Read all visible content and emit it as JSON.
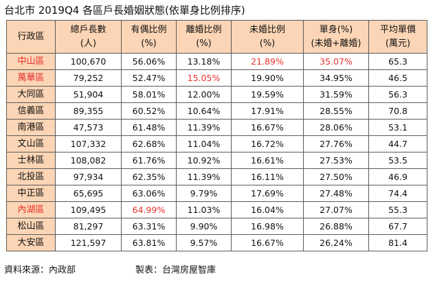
{
  "title": "台北市 2019Q4 各區戶長婚姻狀態(依單身比例排序)",
  "table": {
    "headers": [
      [
        "行政區"
      ],
      [
        "總戶長數",
        "(人)"
      ],
      [
        "有偶比例",
        "(%)"
      ],
      [
        "離婚比例",
        "(%)"
      ],
      [
        "未婚比例",
        "(%)"
      ],
      [
        "單身(%)",
        "(未婚+離婚)"
      ],
      [
        "平均單價",
        "(萬元)"
      ]
    ],
    "rows": [
      {
        "district": "中山區",
        "households": "100,670",
        "married": "56.06%",
        "divorced": "13.18%",
        "unmarried": "21.89%",
        "single": "35.07%",
        "price": "65.3"
      },
      {
        "district": "萬華區",
        "households": "79,252",
        "married": "52.47%",
        "divorced": "15.05%",
        "unmarried": "19.90%",
        "single": "34.95%",
        "price": "46.5"
      },
      {
        "district": "大同區",
        "households": "51,904",
        "married": "58.01%",
        "divorced": "12.00%",
        "unmarried": "19.59%",
        "single": "31.59%",
        "price": "56.3"
      },
      {
        "district": "信義區",
        "households": "89,355",
        "married": "60.52%",
        "divorced": "10.64%",
        "unmarried": "17.91%",
        "single": "28.55%",
        "price": "70.8"
      },
      {
        "district": "南港區",
        "households": "47,573",
        "married": "61.48%",
        "divorced": "11.39%",
        "unmarried": "16.67%",
        "single": "28.06%",
        "price": "53.1"
      },
      {
        "district": "文山區",
        "households": "107,332",
        "married": "62.68%",
        "divorced": "11.04%",
        "unmarried": "16.72%",
        "single": "27.76%",
        "price": "44.7"
      },
      {
        "district": "士林區",
        "households": "108,082",
        "married": "61.76%",
        "divorced": "10.92%",
        "unmarried": "16.61%",
        "single": "27.53%",
        "price": "53.5"
      },
      {
        "district": "北投區",
        "households": "97,934",
        "married": "62.35%",
        "divorced": "11.39%",
        "unmarried": "16.11%",
        "single": "27.50%",
        "price": "46.9"
      },
      {
        "district": "中正區",
        "households": "65,695",
        "married": "63.06%",
        "divorced": "9.79%",
        "unmarried": "17.69%",
        "single": "27.48%",
        "price": "74.4"
      },
      {
        "district": "內湖區",
        "households": "109,495",
        "married": "64.99%",
        "divorced": "11.03%",
        "unmarried": "16.04%",
        "single": "27.07%",
        "price": "55.3"
      },
      {
        "district": "松山區",
        "households": "81,297",
        "married": "63.31%",
        "divorced": "9.90%",
        "unmarried": "16.98%",
        "single": "26.88%",
        "price": "67.7"
      },
      {
        "district": "大安區",
        "households": "121,597",
        "married": "63.81%",
        "divorced": "9.57%",
        "unmarried": "16.67%",
        "single": "26.24%",
        "price": "81.4"
      }
    ],
    "highlights": [
      {
        "row": 0,
        "columns": [
          "district",
          "unmarried",
          "single"
        ]
      },
      {
        "row": 1,
        "columns": [
          "district",
          "divorced"
        ]
      },
      {
        "row": 9,
        "columns": [
          "district",
          "married"
        ]
      }
    ]
  },
  "colors": {
    "header_bg": "#fbd5b5",
    "highlight_text": "#e8302c",
    "border": "#5a5a5a"
  },
  "footer": {
    "source": "資料來源：內政部",
    "maker": "製表：台灣房屋智庫"
  }
}
